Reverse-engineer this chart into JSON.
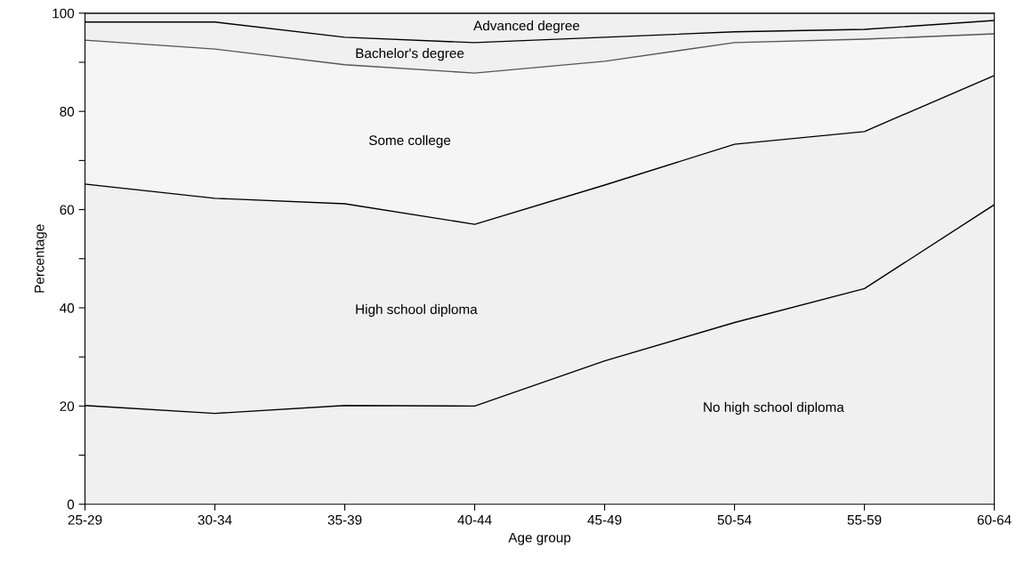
{
  "chart_data": {
    "type": "area",
    "stacked": true,
    "xlabel": "Age group",
    "ylabel": "Percentage",
    "categories": [
      "25-29",
      "30-34",
      "35-39",
      "40-44",
      "45-49",
      "50-54",
      "55-59",
      "60-64"
    ],
    "ylim": [
      0,
      100
    ],
    "yticks": [
      0,
      {
        "value": 10,
        "label": null
      },
      20,
      {
        "value": 30,
        "label": null
      },
      40,
      {
        "value": 50,
        "label": null
      },
      60,
      {
        "value": 70,
        "label": null
      },
      80,
      {
        "value": 90,
        "label": null
      },
      100
    ],
    "grid": false,
    "legend": false,
    "series": [
      {
        "name": "No high school diploma",
        "color": "#000000",
        "values": [
          20.1,
          18.5,
          20.1,
          20,
          29.2,
          37,
          43.9,
          61
        ]
      },
      {
        "name": "High school diploma",
        "color": "#000000",
        "values": [
          45.1,
          43.8,
          41.1,
          37,
          35.8,
          36.3,
          32,
          26.3
        ]
      },
      {
        "name": "Some college",
        "color": "#555555",
        "values": [
          29.3,
          30.4,
          28.3,
          30.8,
          25.2,
          20.7,
          18.8,
          8.5
        ]
      },
      {
        "name": "Bachelor's degree",
        "color": "#000000",
        "values": [
          3.7,
          5.5,
          5.6,
          6.2,
          4.9,
          2.2,
          2.0,
          2.7
        ]
      },
      {
        "name": "Advanced degree",
        "color": "#000000",
        "values": [
          1.8,
          1.8,
          4.9,
          6,
          4.9,
          3.8,
          3.3,
          1.5
        ]
      }
    ]
  }
}
